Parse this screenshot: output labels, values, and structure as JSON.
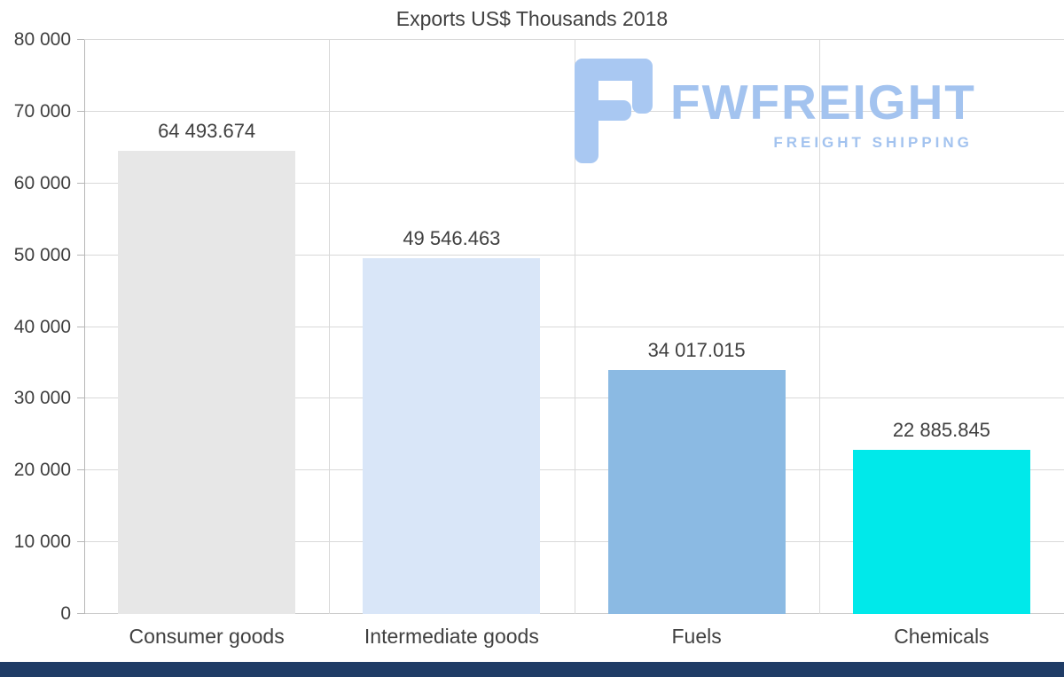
{
  "title": "Exports US$ Thousands 2018",
  "logo": {
    "name": "FWFREIGHT",
    "tagline": "FREIGHT SHIPPING",
    "color": "#a3c3ef",
    "icon": "fwfreight-f-mark"
  },
  "footer": {
    "color": "#1f3c66"
  },
  "chart_data": {
    "type": "bar",
    "title": "Exports US$ Thousands 2018",
    "categories": [
      "Consumer goods",
      "Intermediate goods",
      "Fuels",
      "Chemicals"
    ],
    "values": [
      64493.674,
      49546.463,
      34017.015,
      22885.845
    ],
    "value_labels": [
      "64 493.674",
      "49 546.463",
      "34 017.015",
      "22 885.845"
    ],
    "bar_colors": [
      "#e7e7e7",
      "#d9e6f8",
      "#8bbae3",
      "#00e9ea"
    ],
    "xlabel": "",
    "ylabel": "",
    "ylim": [
      0,
      80000
    ],
    "ytick_step": 10000,
    "ytick_labels": [
      "0",
      "10 000",
      "20 000",
      "30 000",
      "40 000",
      "50 000",
      "60 000",
      "70 000",
      "80 000"
    ],
    "grid": true,
    "legend": false
  }
}
